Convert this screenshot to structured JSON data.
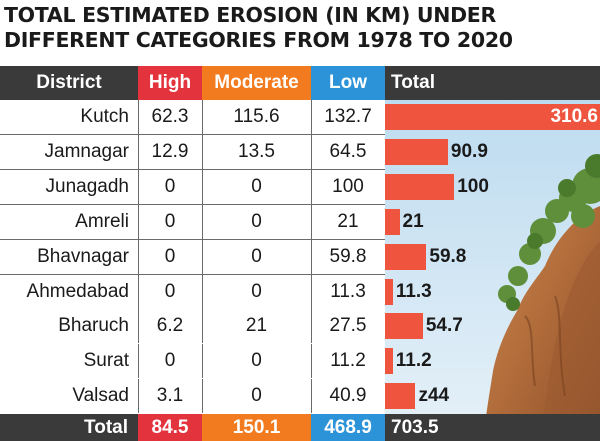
{
  "title": {
    "line1": "TOTAL ESTIMATED EROSION (IN KM) UNDER",
    "line2": "DIFFERENT CATEGORIES FROM 1978 TO 2020"
  },
  "colors": {
    "high": "#e3343e",
    "moderate": "#f27b1f",
    "low": "#2d93d8",
    "header": "#3a3a3a",
    "bar": "#ef553e"
  },
  "chart_data": {
    "type": "table",
    "title": "TOTAL ESTIMATED EROSION (IN KM) UNDER DIFFERENT CATEGORIES FROM 1978 TO 2020",
    "columns": [
      "District",
      "High",
      "Moderate",
      "Low",
      "Total"
    ],
    "rows": [
      {
        "district": "Kutch",
        "high": "62.3",
        "moderate": "115.6",
        "low": "132.7",
        "total": 310.6,
        "total_label": "310.6"
      },
      {
        "district": "Jamnagar",
        "high": "12.9",
        "moderate": "13.5",
        "low": "64.5",
        "total": 90.9,
        "total_label": "90.9"
      },
      {
        "district": "Junagadh",
        "high": "0",
        "moderate": "0",
        "low": "100",
        "total": 100,
        "total_label": "100"
      },
      {
        "district": "Amreli",
        "high": "0",
        "moderate": "0",
        "low": "21",
        "total": 21,
        "total_label": "21"
      },
      {
        "district": "Bhavnagar",
        "high": "0",
        "moderate": "0",
        "low": "59.8",
        "total": 59.8,
        "total_label": "59.8"
      },
      {
        "district": "Ahmedabad",
        "high": "0",
        "moderate": "0",
        "low": "11.3",
        "total": 11.3,
        "total_label": "11.3"
      },
      {
        "district": "Bharuch",
        "high": "6.2",
        "moderate": "21",
        "low": "27.5",
        "total": 54.7,
        "total_label": "54.7"
      },
      {
        "district": "Surat",
        "high": "0",
        "moderate": "0",
        "low": "11.2",
        "total": 11.2,
        "total_label": "11.2"
      },
      {
        "district": "Valsad",
        "high": "3.1",
        "moderate": "0",
        "low": "40.9",
        "total": 44,
        "total_label": "z44"
      }
    ],
    "totals": {
      "label": "Total",
      "high": "84.5",
      "moderate": "150.1",
      "low": "468.9",
      "total": "703.5"
    }
  }
}
